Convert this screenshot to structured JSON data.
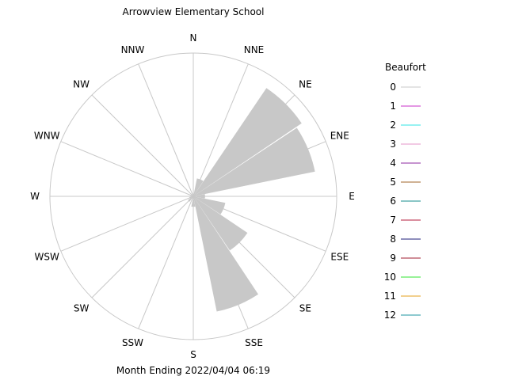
{
  "chart_data": {
    "type": "wind-rose",
    "title": "Arrowview Elementary School",
    "subtitle": "Month Ending 2022/04/04 06:19",
    "directions": [
      "N",
      "NNE",
      "NE",
      "ENE",
      "E",
      "ESE",
      "SE",
      "SSE",
      "S",
      "SSW",
      "SW",
      "WSW",
      "W",
      "WNW",
      "NW",
      "NNW"
    ],
    "fraction_of_max": [
      0.0,
      0.14,
      1.0,
      0.95,
      0.09,
      0.25,
      0.5,
      0.9,
      0.08,
      0.0,
      0.05,
      0.03,
      0.0,
      0.0,
      0.0,
      0.0
    ],
    "legend": {
      "title": "Beaufort",
      "labels": [
        "0",
        "1",
        "2",
        "3",
        "4",
        "5",
        "6",
        "7",
        "8",
        "9",
        "10",
        "11",
        "12"
      ],
      "colors": [
        "#c8c8c8",
        "#c832c8",
        "#32e6e6",
        "#e696c8",
        "#8c28a0",
        "#a06428",
        "#148c8c",
        "#b41e3c",
        "#1e1e78",
        "#a01e32",
        "#32e632",
        "#e6a01e",
        "#1e96a0"
      ]
    },
    "colors": {
      "petal": "#c8c8c8",
      "grid": "#c8c8c8"
    }
  }
}
